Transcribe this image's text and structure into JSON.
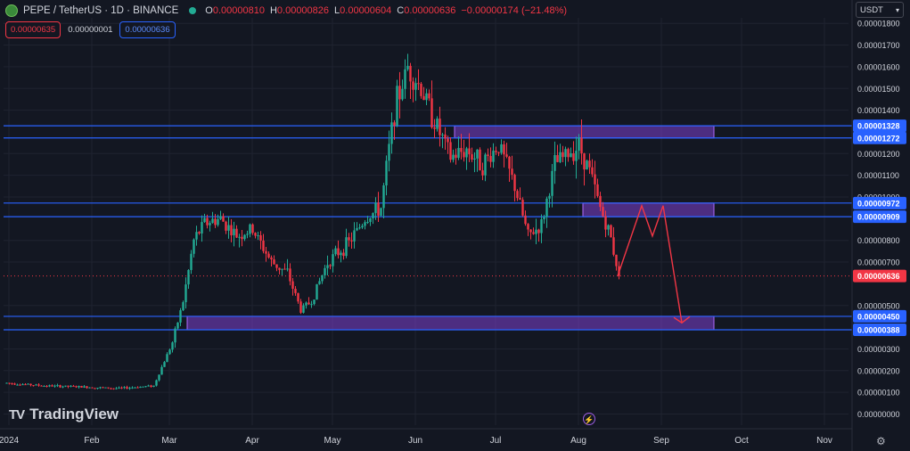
{
  "header": {
    "symbol_title": "PEPE / TetherUS · 1D · BINANCE",
    "ohlc": [
      {
        "k": "O",
        "v": "0.00000810"
      },
      {
        "k": "H",
        "v": "0.00000826"
      },
      {
        "k": "L",
        "v": "0.00000604"
      },
      {
        "k": "C",
        "v": "0.00000636"
      }
    ],
    "change": "−0.00000174 (−21.48%)",
    "status_color": "#22ab94"
  },
  "trade": {
    "sell_price": "0.00000635",
    "spread": "0.00000001",
    "buy_price": "0.00000636"
  },
  "currency_button": "USDT",
  "brand": "TradingView",
  "colors": {
    "up": "#22ab94",
    "down": "#f23645",
    "level_line": "#2962ff",
    "zone_fill": "#7e3fd0",
    "projection": "#f23645"
  },
  "chart_data": {
    "type": "candlestick",
    "title": "PEPE / TetherUS · 1D · BINANCE",
    "ylim": [
      0,
      1.8e-05
    ],
    "y_ticks": [
      "0.00001800",
      "0.00001700",
      "0.00001600",
      "0.00001500",
      "0.00001400",
      "0.00001200",
      "0.00001100",
      "0.00001000",
      "0.00000800",
      "0.00000700",
      "0.00000500",
      "0.00000300",
      "0.00000200",
      "0.00000100",
      "0.00000000"
    ],
    "x_ticks": [
      "2024",
      "Feb",
      "Mar",
      "Apr",
      "May",
      "Jun",
      "Jul",
      "Aug",
      "Sep",
      "Oct",
      "Nov"
    ],
    "price_path": [
      [
        0,
        1.43e-06
      ],
      [
        14,
        1.3e-06
      ],
      [
        28,
        1.25e-06
      ],
      [
        42,
        1.18e-06
      ],
      [
        55,
        1.3e-06
      ],
      [
        62,
        3.3e-06
      ],
      [
        66,
        5.2e-06
      ],
      [
        70,
        8e-06
      ],
      [
        74,
        8.8e-06
      ],
      [
        80,
        9e-06
      ],
      [
        86,
        8.2e-06
      ],
      [
        92,
        8.5e-06
      ],
      [
        99,
        7e-06
      ],
      [
        105,
        6.5e-06
      ],
      [
        110,
        4.8e-06
      ],
      [
        114,
        5.2e-06
      ],
      [
        120,
        7e-06
      ],
      [
        128,
        7.9e-06
      ],
      [
        134,
        9e-06
      ],
      [
        140,
        9.5e-06
      ],
      [
        145,
        1.4e-05
      ],
      [
        150,
        1.6e-05
      ],
      [
        155,
        1.5e-05
      ],
      [
        160,
        1.35e-05
      ],
      [
        166,
        1.18e-05
      ],
      [
        172,
        1.22e-05
      ],
      [
        178,
        1.15e-05
      ],
      [
        184,
        1.24e-05
      ],
      [
        190,
        1.05e-05
      ],
      [
        195,
        8.2e-06
      ],
      [
        200,
        8.7e-06
      ],
      [
        205,
        1.15e-05
      ],
      [
        210,
        1.2e-05
      ],
      [
        214,
        1.24e-05
      ],
      [
        218,
        1.12e-05
      ],
      [
        222,
        9.5e-06
      ],
      [
        226,
        8.1e-06
      ],
      [
        229,
        6.36e-06
      ]
    ],
    "levels": [
      "0.00001328",
      "0.00001272",
      "0.00000972",
      "0.00000909",
      "0.00000450",
      "0.00000388"
    ],
    "zones": [
      {
        "from": "0.00001272",
        "to": "0.00001328"
      },
      {
        "from": "0.00000909",
        "to": "0.00000972"
      },
      {
        "from": "0.00000388",
        "to": "0.00000450"
      }
    ],
    "last_price": "0.00000636",
    "projection": [
      [
        229,
        6.36e-06
      ],
      [
        238,
        9.6e-06
      ],
      [
        242,
        8.2e-06
      ],
      [
        246,
        9.6e-06
      ],
      [
        253,
        4.2e-06
      ]
    ]
  }
}
